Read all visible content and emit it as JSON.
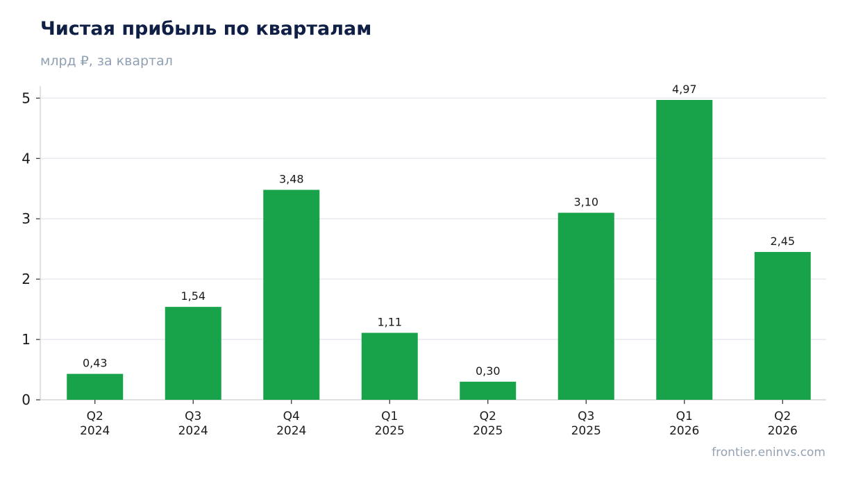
{
  "header": {
    "title": "Чистая прибыль по кварталам",
    "subtitle": "млрд ₽, за квартал"
  },
  "footer": {
    "source": "frontier.eninvs.com"
  },
  "colors": {
    "bar": "#18a34a",
    "grid": "#e3e7ee",
    "axis": "#c9ced6",
    "title": "#0f1f45",
    "muted": "#8fa0b3"
  },
  "chart_data": {
    "type": "bar",
    "title": "Чистая прибыль по кварталам",
    "subtitle": "млрд ₽, за квартал",
    "categories": [
      [
        "Q2",
        "2024"
      ],
      [
        "Q3",
        "2024"
      ],
      [
        "Q4",
        "2024"
      ],
      [
        "Q1",
        "2025"
      ],
      [
        "Q2",
        "2025"
      ],
      [
        "Q3",
        "2025"
      ],
      [
        "Q1",
        "2026"
      ],
      [
        "Q2",
        "2026"
      ]
    ],
    "values": [
      0.43,
      1.54,
      3.48,
      1.11,
      0.3,
      3.1,
      4.97,
      2.45
    ],
    "data_labels": [
      "0,43",
      "1,54",
      "3,48",
      "1,11",
      "0,30",
      "3,10",
      "4,97",
      "2,45"
    ],
    "yticks": [
      "0",
      "1",
      "2",
      "3",
      "4",
      "5"
    ],
    "ylim": [
      0,
      5.2
    ],
    "grid": true,
    "legend": "none"
  }
}
